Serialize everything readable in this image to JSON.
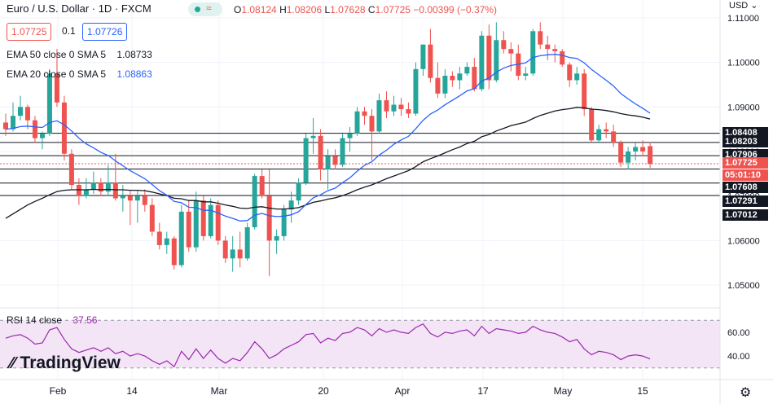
{
  "header": {
    "title": "Euro / U.S. Dollar · 1D · FXCM",
    "open_label": "O",
    "open": "1.08124",
    "high_label": "H",
    "high": "1.08206",
    "low_label": "L",
    "low": "1.07628",
    "close_label": "C",
    "close": "1.07725",
    "change": "−0.00399 (−0.37%)",
    "sell_box": "1.07725",
    "spread": "0.1",
    "buy_box": "1.07726",
    "currency": "USD"
  },
  "indicators": {
    "ema50_label": "EMA 50 close 0 SMA 5",
    "ema50_value": "1.08733",
    "ema20_label": "EMA 20 close 0 SMA 5",
    "ema20_value": "1.08863",
    "rsi_label": "RSI 14 close",
    "rsi_value": "37.56"
  },
  "price_tags": {
    "current": "1.07725",
    "countdown": "05:01:10",
    "levels": [
      "1.08408",
      "1.08203",
      "1.07906",
      "1.07608",
      "1.07291",
      "1.07012"
    ]
  },
  "branding": {
    "logo_text": "TradingView"
  },
  "colors": {
    "up": "#26a69a",
    "down": "#ef5350",
    "ema20": "#2962ff",
    "ema50": "#131722",
    "rsi": "#9c27b0",
    "rsi_band": "#f3e5f5",
    "accent": "#2962ff"
  },
  "chart_data": {
    "type": "candlestick",
    "title": "Euro / U.S. Dollar · 1D · FXCM",
    "y_axis": {
      "ticks": [
        1.05,
        1.06,
        1.07,
        1.08,
        1.09,
        1.1,
        1.11
      ],
      "tick_labels": [
        "1.05000",
        "1.06000",
        "1.07000",
        "1.08000",
        "1.09000",
        "1.10000",
        "1.11000"
      ],
      "ylim": [
        1.046,
        1.114
      ]
    },
    "x_axis": {
      "labels": [
        "Feb",
        "14",
        "Mar",
        "20",
        "Apr",
        "17",
        "May",
        "15"
      ]
    },
    "horizontal_levels": [
      1.08408,
      1.08203,
      1.07906,
      1.07608,
      1.07291,
      1.07012
    ],
    "candles": [
      [
        1.0865,
        1.0885,
        1.0835,
        1.085
      ],
      [
        1.085,
        1.091,
        1.0845,
        1.088
      ],
      [
        1.088,
        1.0925,
        1.087,
        1.09
      ],
      [
        1.09,
        1.0905,
        1.085,
        1.087
      ],
      [
        1.087,
        1.088,
        1.082,
        1.083
      ],
      [
        1.083,
        1.0845,
        1.0805,
        1.084
      ],
      [
        1.084,
        1.0985,
        1.0835,
        1.0975
      ],
      [
        1.0975,
        1.103,
        1.09,
        1.091
      ],
      [
        1.091,
        1.0925,
        1.078,
        1.0795
      ],
      [
        1.0795,
        1.0805,
        1.0715,
        1.0725
      ],
      [
        1.0725,
        1.074,
        1.068,
        1.07
      ],
      [
        1.07,
        1.074,
        1.0695,
        1.0715
      ],
      [
        1.0715,
        1.0755,
        1.0705,
        1.073
      ],
      [
        1.073,
        1.074,
        1.07,
        1.071
      ],
      [
        1.071,
        1.077,
        1.07,
        1.073
      ],
      [
        1.073,
        1.0795,
        1.069,
        1.0695
      ],
      [
        1.0695,
        1.0725,
        1.0665,
        1.07
      ],
      [
        1.07,
        1.0712,
        1.0635,
        1.069
      ],
      [
        1.069,
        1.0712,
        1.064,
        1.07
      ],
      [
        1.07,
        1.0715,
        1.0665,
        1.068
      ],
      [
        1.068,
        1.0695,
        1.061,
        1.062
      ],
      [
        1.062,
        1.064,
        1.058,
        1.059
      ],
      [
        1.059,
        1.062,
        1.057,
        1.0605
      ],
      [
        1.0605,
        1.061,
        1.0535,
        1.0545
      ],
      [
        1.0545,
        1.068,
        1.054,
        1.0665
      ],
      [
        1.0665,
        1.069,
        1.0575,
        1.0585
      ],
      [
        1.0585,
        1.071,
        1.0575,
        1.069
      ],
      [
        1.069,
        1.07,
        1.06,
        1.061
      ],
      [
        1.061,
        1.0695,
        1.0605,
        1.068
      ],
      [
        1.068,
        1.069,
        1.059,
        1.06
      ],
      [
        1.06,
        1.061,
        1.055,
        1.056
      ],
      [
        1.056,
        1.061,
        1.053,
        1.058
      ],
      [
        1.058,
        1.062,
        1.054,
        1.056
      ],
      [
        1.056,
        1.064,
        1.0555,
        1.063
      ],
      [
        1.063,
        1.075,
        1.0625,
        1.0745
      ],
      [
        1.0745,
        1.076,
        1.0695,
        1.07
      ],
      [
        1.07,
        1.076,
        1.052,
        1.06
      ],
      [
        1.06,
        1.0625,
        1.057,
        1.061
      ],
      [
        1.061,
        1.068,
        1.06,
        1.067
      ],
      [
        1.067,
        1.071,
        1.064,
        1.069
      ],
      [
        1.069,
        1.074,
        1.068,
        1.073
      ],
      [
        1.073,
        1.084,
        1.0725,
        1.083
      ],
      [
        1.083,
        1.0875,
        1.0795,
        1.0835
      ],
      [
        1.0835,
        1.085,
        1.0735,
        1.076
      ],
      [
        1.076,
        1.0805,
        1.0715,
        1.079
      ],
      [
        1.079,
        1.0805,
        1.076,
        1.077
      ],
      [
        1.077,
        1.084,
        1.0765,
        1.083
      ],
      [
        1.083,
        1.0855,
        1.08,
        1.084
      ],
      [
        1.084,
        1.09,
        1.0835,
        1.089
      ],
      [
        1.089,
        1.09,
        1.086,
        1.088
      ],
      [
        1.088,
        1.0895,
        1.078,
        1.0845
      ],
      [
        1.0845,
        1.093,
        1.084,
        1.0915
      ],
      [
        1.0915,
        1.0935,
        1.0875,
        1.089
      ],
      [
        1.089,
        1.0925,
        1.088,
        1.0905
      ],
      [
        1.0905,
        1.092,
        1.088,
        1.0895
      ],
      [
        1.0895,
        1.091,
        1.0875,
        1.0885
      ],
      [
        1.0885,
        1.1,
        1.088,
        1.0985
      ],
      [
        1.0985,
        1.104,
        1.097,
        1.104
      ],
      [
        1.104,
        1.1075,
        1.0955,
        1.0965
      ],
      [
        1.0965,
        1.1,
        1.092,
        1.093
      ],
      [
        1.093,
        1.0985,
        1.092,
        1.097
      ],
      [
        1.097,
        1.098,
        1.0945,
        1.096
      ],
      [
        1.096,
        1.099,
        1.094,
        1.0975
      ],
      [
        1.0975,
        1.1,
        1.097,
        1.099
      ],
      [
        1.099,
        1.101,
        1.0935,
        1.094
      ],
      [
        1.094,
        1.107,
        1.0935,
        1.106
      ],
      [
        1.106,
        1.1085,
        1.094,
        1.096
      ],
      [
        1.096,
        1.109,
        1.0955,
        1.105
      ],
      [
        1.105,
        1.107,
        1.102,
        1.103
      ],
      [
        1.103,
        1.1045,
        1.098,
        1.102
      ],
      [
        1.102,
        1.104,
        1.096,
        1.097
      ],
      [
        1.097,
        1.099,
        1.096,
        1.0975
      ],
      [
        1.0975,
        1.1075,
        1.097,
        1.107
      ],
      [
        1.107,
        1.109,
        1.103,
        1.104
      ],
      [
        1.104,
        1.106,
        1.1005,
        1.103
      ],
      [
        1.103,
        1.104,
        1.1,
        1.1025
      ],
      [
        1.1025,
        1.103,
        1.099,
        1.0995
      ],
      [
        1.0995,
        1.1,
        1.0945,
        1.096
      ],
      [
        1.096,
        1.099,
        1.095,
        1.0975
      ],
      [
        1.0975,
        1.0985,
        1.088,
        1.0895
      ],
      [
        1.0895,
        1.09,
        1.082,
        1.0825
      ],
      [
        1.0825,
        1.086,
        1.082,
        1.085
      ],
      [
        1.085,
        1.0865,
        1.083,
        1.0845
      ],
      [
        1.0845,
        1.086,
        1.081,
        1.082
      ],
      [
        1.082,
        1.0825,
        1.0765,
        1.0775
      ],
      [
        1.0775,
        1.081,
        1.076,
        1.08
      ],
      [
        1.08,
        1.082,
        1.078,
        1.081
      ],
      [
        1.081,
        1.0825,
        1.079,
        1.08
      ],
      [
        1.0812,
        1.0821,
        1.0763,
        1.0772
      ]
    ],
    "ema20": [
      1.085,
      1.0852,
      1.0856,
      1.0857,
      1.0855,
      1.0854,
      1.0865,
      1.0869,
      1.086,
      1.0846,
      1.083,
      1.0817,
      1.0808,
      1.0798,
      1.0791,
      1.0779,
      1.0768,
      1.0757,
      1.0748,
      1.0739,
      1.0726,
      1.0712,
      1.0702,
      1.0688,
      1.0685,
      1.0675,
      1.0674,
      1.0668,
      1.0668,
      1.0662,
      1.0655,
      1.065,
      1.0644,
      1.0645,
      1.0657,
      1.0661,
      1.0656,
      1.0654,
      1.0655,
      1.0658,
      1.0665,
      1.0681,
      1.0696,
      1.0703,
      1.0712,
      1.0718,
      1.073,
      1.0741,
      1.0756,
      1.0769,
      1.0777,
      1.0792,
      1.0803,
      1.0816,
      1.0826,
      1.0834,
      1.0851,
      1.087,
      1.0884,
      1.0893,
      1.0905,
      1.0915,
      1.0925,
      1.0936,
      1.0941,
      1.0958,
      1.0965,
      1.0978,
      1.0987,
      1.0993,
      1.0996,
      1.0999,
      1.1011,
      1.1015,
      1.1017,
      1.1018,
      1.1016,
      1.1011,
      1.1009,
      1.0999,
      1.0984,
      1.0972,
      1.096,
      1.0947,
      1.093,
      1.0918,
      1.0907,
      1.0897,
      1.0886
    ],
    "ema50": [
      1.065,
      1.066,
      1.067,
      1.068,
      1.0688,
      1.0695,
      1.0703,
      1.071,
      1.0713,
      1.0714,
      1.0714,
      1.0714,
      1.0715,
      1.0714,
      1.0715,
      1.0714,
      1.0714,
      1.0713,
      1.0713,
      1.0712,
      1.0709,
      1.0705,
      1.0701,
      1.0695,
      1.0694,
      1.069,
      1.069,
      1.0687,
      1.0687,
      1.0684,
      1.068,
      1.0677,
      1.0673,
      1.0672,
      1.0675,
      1.0676,
      1.0673,
      1.0671,
      1.0671,
      1.0672,
      1.0674,
      1.068,
      1.0686,
      1.0689,
      1.0693,
      1.0696,
      1.0701,
      1.0707,
      1.0714,
      1.072,
      1.0725,
      1.0732,
      1.0739,
      1.0745,
      1.0751,
      1.0757,
      1.0766,
      1.0777,
      1.0784,
      1.079,
      1.0797,
      1.0804,
      1.081,
      1.0818,
      1.0823,
      1.0833,
      1.0838,
      1.0846,
      1.0852,
      1.0858,
      1.0862,
      1.0866,
      1.0874,
      1.0881,
      1.0886,
      1.0891,
      1.0894,
      1.0896,
      1.0899,
      1.0898,
      1.0895,
      1.0894,
      1.0892,
      1.0889,
      1.0885,
      1.0882,
      1.088,
      1.0877,
      1.0873
    ],
    "rsi": {
      "name": "RSI 14 close",
      "levels": [
        70,
        30
      ],
      "tick_labels": [
        "60.00",
        "40.00"
      ],
      "ylim": [
        25,
        75
      ],
      "values": [
        55,
        57,
        58,
        55,
        50,
        51,
        62,
        64,
        54,
        46,
        43,
        45,
        47,
        44,
        47,
        42,
        44,
        40,
        42,
        40,
        36,
        33,
        36,
        31,
        44,
        37,
        46,
        38,
        45,
        38,
        34,
        38,
        36,
        43,
        52,
        46,
        38,
        41,
        46,
        49,
        52,
        58,
        59,
        51,
        55,
        53,
        59,
        60,
        64,
        62,
        57,
        63,
        60,
        62,
        60,
        59,
        64,
        67,
        59,
        56,
        60,
        59,
        61,
        62,
        57,
        65,
        59,
        63,
        62,
        61,
        59,
        60,
        65,
        62,
        60,
        59,
        56,
        52,
        54,
        46,
        41,
        44,
        43,
        41,
        37,
        40,
        41,
        40,
        37.56
      ]
    }
  }
}
